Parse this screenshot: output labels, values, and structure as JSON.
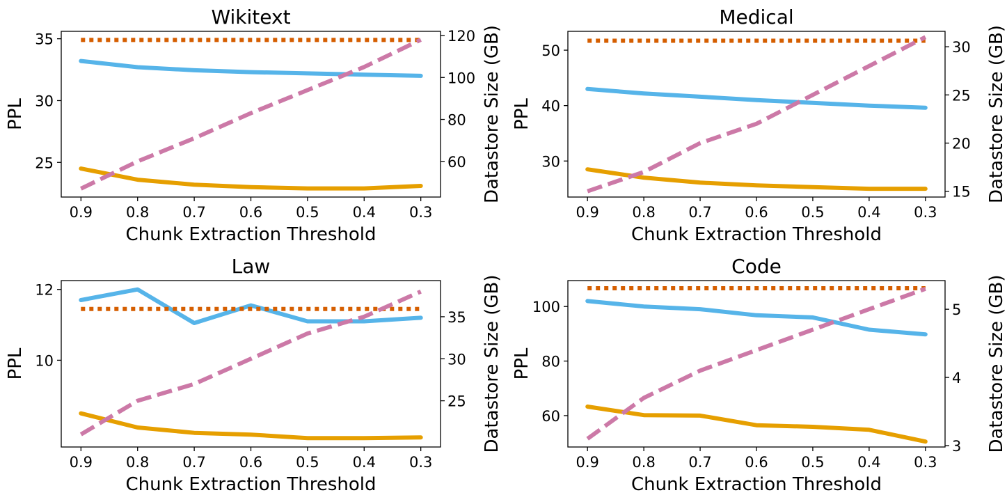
{
  "colors": {
    "blue": "#56b4e9",
    "orange": "#e69f00",
    "vermillion": "#d55e00",
    "pink": "#cc79a7"
  },
  "chart_data": [
    {
      "type": "line",
      "title": "Wikitext",
      "xlabel": "Chunk Extraction Threshold",
      "ylabel": "PPL",
      "y2label": "Datastore Size (GB)",
      "x": [
        0.9,
        0.8,
        0.7,
        0.6,
        0.5,
        0.4,
        0.3
      ],
      "x_reversed": true,
      "ylim": [
        22.2,
        35.6
      ],
      "y2lim": [
        43,
        122
      ],
      "yticks": [
        25,
        30,
        35
      ],
      "y2ticks": [
        60,
        80,
        100,
        120
      ],
      "grid": false,
      "series": [
        {
          "color": "blue",
          "style": "solid",
          "axis": "left",
          "values": [
            33.2,
            32.7,
            32.45,
            32.3,
            32.2,
            32.1,
            32.0
          ]
        },
        {
          "color": "orange",
          "style": "solid",
          "axis": "left",
          "values": [
            24.5,
            23.6,
            23.2,
            23.0,
            22.9,
            22.9,
            23.1
          ]
        },
        {
          "color": "vermillion",
          "style": "dotted",
          "axis": "left",
          "values": [
            34.9,
            34.9,
            34.9,
            34.9,
            34.9,
            34.9,
            34.9
          ]
        },
        {
          "color": "pink",
          "style": "dashed",
          "axis": "right",
          "values": [
            47,
            60,
            71,
            83,
            94,
            105,
            118
          ]
        }
      ]
    },
    {
      "type": "line",
      "title": "Medical",
      "xlabel": "Chunk Extraction Threshold",
      "ylabel": "PPL",
      "y2label": "Datastore Size (GB)",
      "x": [
        0.9,
        0.8,
        0.7,
        0.6,
        0.5,
        0.4,
        0.3
      ],
      "x_reversed": true,
      "ylim": [
        23.5,
        53.4
      ],
      "y2lim": [
        14.4,
        31.6
      ],
      "yticks": [
        30,
        40,
        50
      ],
      "y2ticks": [
        15,
        20,
        25,
        30
      ],
      "grid": false,
      "series": [
        {
          "color": "blue",
          "style": "solid",
          "axis": "left",
          "values": [
            43.0,
            42.2,
            41.6,
            41.0,
            40.5,
            40.0,
            39.6
          ]
        },
        {
          "color": "orange",
          "style": "solid",
          "axis": "left",
          "values": [
            28.5,
            27.0,
            26.1,
            25.6,
            25.3,
            25.0,
            25.0
          ]
        },
        {
          "color": "vermillion",
          "style": "dotted",
          "axis": "left",
          "values": [
            51.7,
            51.7,
            51.7,
            51.7,
            51.7,
            51.7,
            51.7
          ]
        },
        {
          "color": "pink",
          "style": "dashed",
          "axis": "right",
          "values": [
            15.0,
            17.0,
            20.0,
            22.0,
            25.0,
            28.0,
            31.0
          ]
        }
      ]
    },
    {
      "type": "line",
      "title": "Law",
      "xlabel": "Chunk Extraction Threshold",
      "ylabel": "PPL",
      "y2label": "Datastore Size (GB)",
      "x": [
        0.9,
        0.8,
        0.7,
        0.6,
        0.5,
        0.4,
        0.3
      ],
      "x_reversed": true,
      "ylim": [
        7.55,
        12.25
      ],
      "y2lim": [
        19.5,
        39.3
      ],
      "yticks": [
        10,
        12
      ],
      "y2ticks": [
        25,
        30,
        35
      ],
      "grid": false,
      "series": [
        {
          "color": "blue",
          "style": "solid",
          "axis": "left",
          "values": [
            11.7,
            12.0,
            11.05,
            11.55,
            11.1,
            11.1,
            11.2
          ]
        },
        {
          "color": "orange",
          "style": "solid",
          "axis": "left",
          "values": [
            8.5,
            8.1,
            7.95,
            7.9,
            7.8,
            7.8,
            7.82
          ]
        },
        {
          "color": "vermillion",
          "style": "dotted",
          "axis": "left",
          "values": [
            11.45,
            11.45,
            11.45,
            11.45,
            11.45,
            11.45,
            11.45
          ]
        },
        {
          "color": "pink",
          "style": "dashed",
          "axis": "right",
          "values": [
            21.0,
            25.0,
            27.0,
            30.0,
            33.0,
            35.0,
            38.0
          ]
        }
      ]
    },
    {
      "type": "line",
      "title": "Code",
      "xlabel": "Chunk Extraction Threshold",
      "ylabel": "PPL",
      "y2label": "Datastore Size (GB)",
      "x": [
        0.9,
        0.8,
        0.7,
        0.6,
        0.5,
        0.4,
        0.3
      ],
      "x_reversed": true,
      "ylim": [
        48.5,
        109.5
      ],
      "y2lim": [
        2.98,
        5.42
      ],
      "yticks": [
        60,
        80,
        100
      ],
      "y2ticks": [
        3,
        4,
        5
      ],
      "grid": false,
      "series": [
        {
          "color": "blue",
          "style": "solid",
          "axis": "left",
          "values": [
            102.0,
            100.0,
            99.0,
            96.8,
            96.0,
            91.5,
            89.8
          ]
        },
        {
          "color": "orange",
          "style": "solid",
          "axis": "left",
          "values": [
            63.3,
            60.2,
            60.0,
            56.5,
            55.9,
            54.8,
            50.5
          ]
        },
        {
          "color": "vermillion",
          "style": "dotted",
          "axis": "left",
          "values": [
            106.7,
            106.7,
            106.7,
            106.7,
            106.7,
            106.7,
            106.7
          ]
        },
        {
          "color": "pink",
          "style": "dashed",
          "axis": "right",
          "values": [
            3.1,
            3.7,
            4.1,
            4.4,
            4.7,
            5.0,
            5.3
          ]
        }
      ]
    }
  ]
}
